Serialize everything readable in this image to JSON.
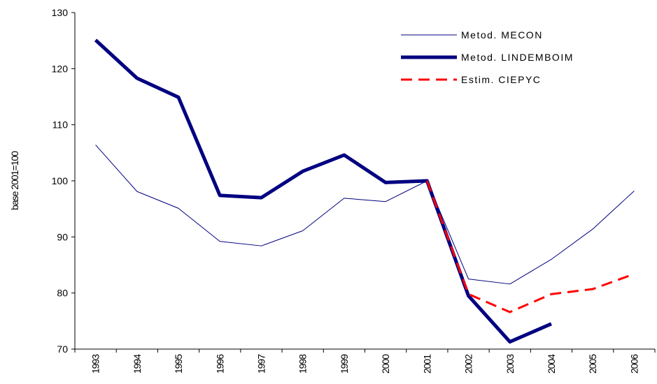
{
  "chart_data": {
    "type": "line",
    "y_label": "base 2001=100",
    "categories": [
      "1993",
      "1994",
      "1995",
      "1996",
      "1997",
      "1998",
      "1999",
      "2000",
      "2001",
      "2002",
      "2003",
      "2004",
      "2005",
      "2006"
    ],
    "series": [
      {
        "name": "Metod. MECON",
        "color": "#000080",
        "width": 1,
        "dash": false,
        "values": [
          106.4,
          98.1,
          95.1,
          89.2,
          88.4,
          91.1,
          96.9,
          96.3,
          100,
          82.5,
          81.6,
          86.0,
          91.4,
          98.2
        ]
      },
      {
        "name": "Metod. LINDEMBOIM",
        "color": "#000080",
        "width": 5,
        "dash": false,
        "values": [
          125.1,
          118.3,
          114.9,
          97.4,
          97.0,
          101.7,
          104.6,
          99.7,
          100,
          79.5,
          71.3,
          74.5,
          null,
          null
        ]
      },
      {
        "name": "Estim. CIEPYC",
        "color": "#ff0000",
        "width": 3,
        "dash": true,
        "values": [
          null,
          null,
          null,
          null,
          null,
          null,
          null,
          null,
          100,
          79.8,
          76.6,
          79.8,
          80.7,
          83.4
        ]
      }
    ],
    "ylim": [
      70,
      130
    ],
    "yticks": [
      70,
      80,
      90,
      100,
      110,
      120,
      130
    ],
    "grid": false,
    "legend": "top-right"
  }
}
